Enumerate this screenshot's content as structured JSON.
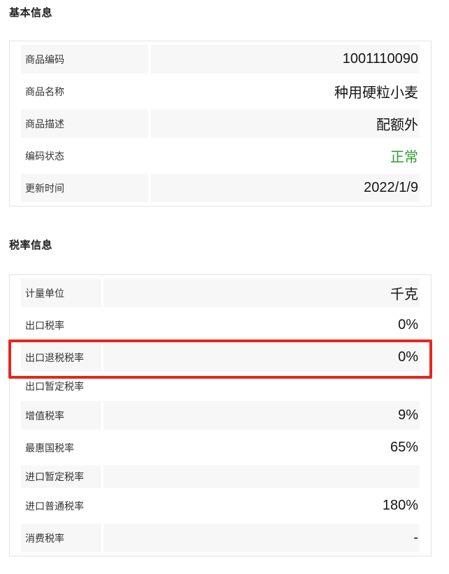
{
  "colors": {
    "row-alt-bg": "#f7f7f7",
    "card-border": "#e3e3e3",
    "label-color": "#333333",
    "value-color": "#151515",
    "title-color": "#222222",
    "status-green": "#2e9d32",
    "highlight-red": "#e7261d"
  },
  "sections": [
    {
      "title": "基本信息",
      "rows": [
        {
          "label": "商品编码",
          "value": "1001110090"
        },
        {
          "label": "商品名称",
          "value": "种用硬粒小麦"
        },
        {
          "label": "商品描述",
          "value": "配额外"
        },
        {
          "label": "编码状态",
          "value": "正常"
        },
        {
          "label": "更新时间",
          "value": "2022/1/9"
        }
      ]
    },
    {
      "title": "税率信息",
      "rows": [
        {
          "label": "计量单位",
          "value": "千克"
        },
        {
          "label": "出口税率",
          "value": "0%"
        },
        {
          "label": "出口退税税率",
          "value": "0%"
        },
        {
          "label": "出口暂定税率",
          "value": ""
        },
        {
          "label": "增值税率",
          "value": "9%"
        },
        {
          "label": "最惠国税率",
          "value": "65%"
        },
        {
          "label": "进口暂定税率",
          "value": ""
        },
        {
          "label": "进口普通税率",
          "value": "180%"
        },
        {
          "label": "消费税率",
          "value": "-"
        }
      ]
    }
  ]
}
